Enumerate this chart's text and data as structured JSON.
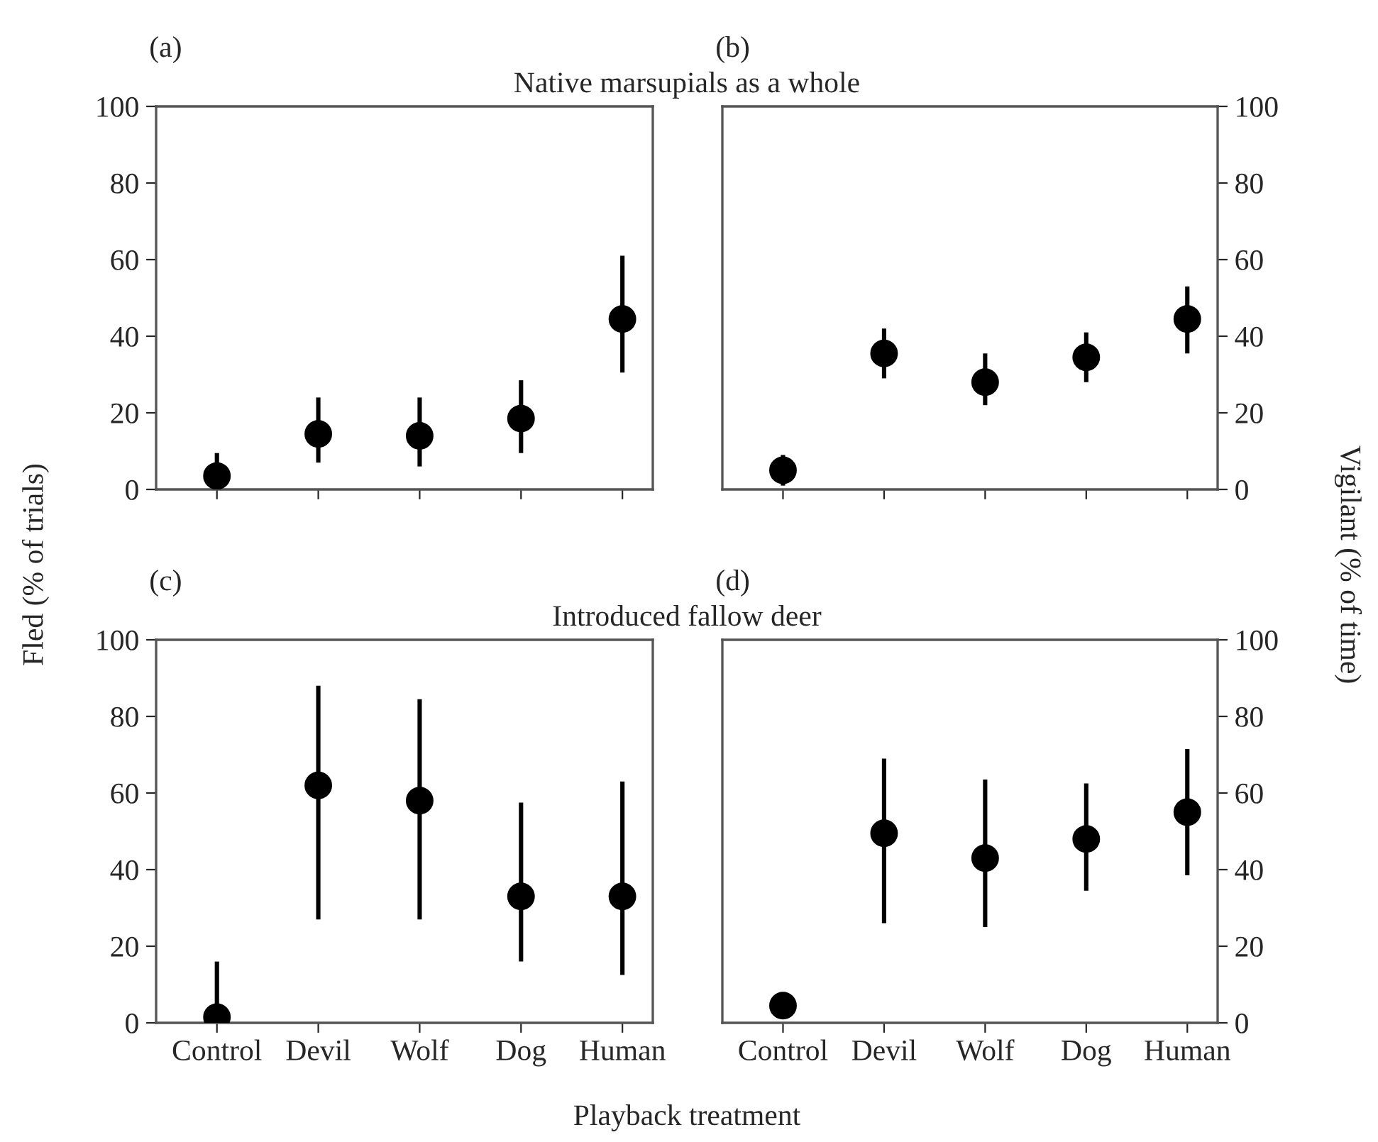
{
  "chart_data": [
    {
      "type": "scatter",
      "title": "Native marsupials as a whole",
      "ylabel": "Fled (% of trials)",
      "annotations": [
        "(a)"
      ],
      "categories": [
        null,
        null,
        null,
        null,
        null
      ],
      "series": [
        {
          "color": "#000000",
          "values": [
            3.5,
            14.5,
            14,
            18.5,
            44.5
          ],
          "errors": [
            [
              0,
              9.5
            ],
            [
              7,
              24
            ],
            [
              6,
              24
            ],
            [
              9.5,
              28.5
            ],
            [
              30.5,
              61
            ]
          ]
        }
      ],
      "ylim": [
        0,
        100
      ],
      "yticks": [
        0,
        20,
        40,
        60,
        80,
        100
      ],
      "tick_labels": "y",
      "marker": "circle",
      "grid": false
    },
    {
      "type": "scatter",
      "ylabel": "Vigilant (% of time)",
      "annotations": [
        "(b)"
      ],
      "categories": [
        null,
        null,
        null,
        null,
        null
      ],
      "series": [
        {
          "color": "#000000",
          "values": [
            5,
            35.5,
            28,
            34.5,
            44.5
          ],
          "errors": [
            [
              1,
              9
            ],
            [
              29,
              42
            ],
            [
              22,
              35.5
            ],
            [
              28,
              41
            ],
            [
              35.5,
              53
            ]
          ]
        }
      ],
      "ylim": [
        0,
        100
      ],
      "yticks": [
        0,
        20,
        40,
        60,
        80,
        100
      ],
      "tick_labels": "y",
      "marker": "circle",
      "grid": false
    },
    {
      "type": "scatter",
      "title": "Introduced fallow deer",
      "xlabel": "Playback treatment",
      "annotations": [
        "(c)"
      ],
      "categories": [
        "Control",
        "Devil",
        "Wolf",
        "Dog",
        "Human"
      ],
      "series": [
        {
          "color": "#000000",
          "values": [
            1.5,
            62,
            58,
            33,
            33
          ],
          "errors": [
            [
              0,
              16
            ],
            [
              27,
              88
            ],
            [
              27,
              84.5
            ],
            [
              16,
              57.5
            ],
            [
              12.5,
              63
            ]
          ]
        }
      ],
      "ylim": [
        0,
        100
      ],
      "yticks": [
        0,
        20,
        40,
        60,
        80,
        100
      ],
      "marker": "circle",
      "grid": false
    },
    {
      "type": "scatter",
      "annotations": [
        "(d)"
      ],
      "categories": [
        "Control",
        "Devil",
        "Wolf",
        "Dog",
        "Human"
      ],
      "series": [
        {
          "color": "#000000",
          "values": [
            4.5,
            49.5,
            43,
            48,
            55
          ],
          "errors": [
            [
              4.5,
              8
            ],
            [
              26,
              69
            ],
            [
              25,
              63.5
            ],
            [
              34.5,
              62.5
            ],
            [
              38.5,
              71.5
            ]
          ]
        }
      ],
      "ylim": [
        0,
        100
      ],
      "yticks": [
        0,
        20,
        40,
        60,
        80,
        100
      ],
      "marker": "circle",
      "grid": false
    }
  ]
}
